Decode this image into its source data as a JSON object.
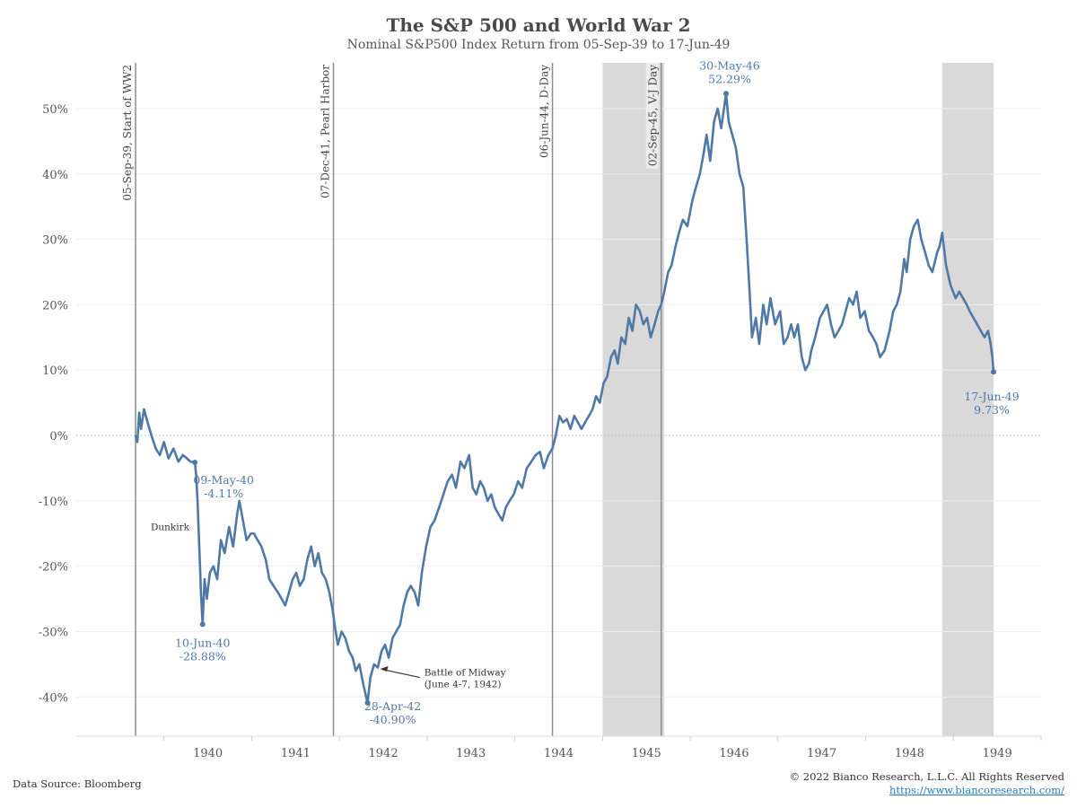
{
  "title": "The S&P 500 and World War 2",
  "subtitle": "Nominal S&P500 Index Return from 05-Sep-39 to 17-Jun-49",
  "footer": {
    "source": "Data Source: Bloomberg",
    "copyright": "© 2022 Bianco Research, L.L.C. All Rights Reserved",
    "url": "https://www.biancoresearch.com/"
  },
  "colors": {
    "line": "#4e79a7",
    "shading": "#d9d9d9",
    "event_line": "#8c8c8c",
    "gridline": "#eeeeee"
  },
  "chart_data": {
    "type": "line",
    "title": "The S&P 500 and World War 2",
    "subtitle": "Nominal S&P500 Index Return from 05-Sep-39 to 17-Jun-49",
    "xlabel": "",
    "ylabel": "",
    "x_ticks": [
      "1940",
      "1941",
      "1942",
      "1943",
      "1944",
      "1945",
      "1946",
      "1947",
      "1948",
      "1949"
    ],
    "y_ticks": [
      "50%",
      "40%",
      "30%",
      "20%",
      "10%",
      "0%",
      "-10%",
      "-20%",
      "-30%",
      "-40%"
    ],
    "y_tick_values": [
      50,
      40,
      30,
      20,
      10,
      0,
      -10,
      -20,
      -30,
      -40
    ],
    "xlim": [
      "1939-01-01",
      "1950-01-01"
    ],
    "ylim": [
      -46,
      57
    ],
    "grid": true,
    "zero_line": "dotted",
    "shaded_periods": [
      {
        "start": "1945-01-01",
        "end": "1945-09-15"
      },
      {
        "start": "1948-11-15",
        "end": "1949-06-17"
      }
    ],
    "events": [
      {
        "date": "1939-09-05",
        "label": "05-Sep-39, Start of WW2"
      },
      {
        "date": "1941-12-07",
        "label": "07-Dec-41, Pearl Harbor"
      },
      {
        "date": "1944-06-06",
        "label": "06-Jun-44, D-Day"
      },
      {
        "date": "1945-09-02",
        "label": "02-Sep-45, V-J Day"
      }
    ],
    "annotations": [
      {
        "date": "1940-05-09",
        "value": -4.11,
        "label_date": "09-May-40",
        "label_value": "-4.11%"
      },
      {
        "date": "1940-06-10",
        "value": -28.88,
        "label_date": "10-Jun-40",
        "label_value": "-28.88%"
      },
      {
        "date": "1942-04-28",
        "value": -40.9,
        "label_date": "28-Apr-42",
        "label_value": "-40.90%"
      },
      {
        "date": "1946-05-30",
        "value": 52.29,
        "label_date": "30-May-46",
        "label_value": "52.29%"
      },
      {
        "date": "1949-06-17",
        "value": 9.73,
        "label_date": "17-Jun-49",
        "label_value": "9.73%"
      }
    ],
    "notes": [
      {
        "text": "Dunkirk"
      },
      {
        "text": "Battle of Midway",
        "text2": "(June 4-7, 1942)"
      }
    ],
    "series": [
      {
        "x": [
          "1939-09-05",
          "1939-09-12",
          "1939-09-20",
          "1939-09-28",
          "1939-10-10",
          "1939-10-25",
          "1939-11-10",
          "1939-11-28",
          "1939-12-15",
          "1940-01-01",
          "1940-01-20",
          "1940-02-10",
          "1940-03-01",
          "1940-03-20",
          "1940-04-05",
          "1940-04-20",
          "1940-05-09",
          "1940-05-14",
          "1940-05-20",
          "1940-05-28",
          "1940-06-03",
          "1940-06-10",
          "1940-06-18",
          "1940-06-28",
          "1940-07-10",
          "1940-07-25",
          "1940-08-10",
          "1940-08-25",
          "1940-09-10",
          "1940-09-28",
          "1940-10-15",
          "1940-11-01",
          "1940-11-10",
          "1940-11-25",
          "1940-12-10",
          "1940-12-28",
          "1941-01-10",
          "1941-01-25",
          "1941-02-10",
          "1941-02-28",
          "1941-03-15",
          "1941-04-01",
          "1941-04-20",
          "1941-05-05",
          "1941-05-20",
          "1941-06-05",
          "1941-06-20",
          "1941-07-05",
          "1941-07-20",
          "1941-08-05",
          "1941-08-20",
          "1941-09-05",
          "1941-09-20",
          "1941-10-05",
          "1941-10-20",
          "1941-11-05",
          "1941-11-20",
          "1941-12-05",
          "1941-12-12",
          "1941-12-25",
          "1942-01-10",
          "1942-01-25",
          "1942-02-10",
          "1942-02-25",
          "1942-03-10",
          "1942-03-25",
          "1942-04-10",
          "1942-04-28",
          "1942-05-10",
          "1942-05-25",
          "1942-06-10",
          "1942-06-25",
          "1942-07-10",
          "1942-07-25",
          "1942-08-10",
          "1942-08-25",
          "1942-09-10",
          "1942-09-25",
          "1942-10-10",
          "1942-10-25",
          "1942-11-10",
          "1942-11-25",
          "1942-12-10",
          "1942-12-28",
          "1943-01-15",
          "1943-02-01",
          "1943-02-20",
          "1943-03-10",
          "1943-03-28",
          "1943-04-15",
          "1943-05-01",
          "1943-05-20",
          "1943-06-05",
          "1943-06-25",
          "1943-07-10",
          "1943-07-25",
          "1943-08-10",
          "1943-08-25",
          "1943-09-10",
          "1943-09-25",
          "1943-10-10",
          "1943-10-25",
          "1943-11-10",
          "1943-11-25",
          "1943-12-10",
          "1943-12-28",
          "1944-01-15",
          "1944-02-01",
          "1944-02-20",
          "1944-03-10",
          "1944-03-28",
          "1944-04-15",
          "1944-05-01",
          "1944-05-20",
          "1944-06-06",
          "1944-06-20",
          "1944-07-05",
          "1944-07-20",
          "1944-08-05",
          "1944-08-20",
          "1944-09-05",
          "1944-09-20",
          "1944-10-05",
          "1944-10-20",
          "1944-11-05",
          "1944-11-20",
          "1944-12-05",
          "1944-12-20",
          "1945-01-05",
          "1945-01-20",
          "1945-02-05",
          "1945-02-20",
          "1945-03-05",
          "1945-03-20",
          "1945-04-05",
          "1945-04-20",
          "1945-05-05",
          "1945-05-20",
          "1945-06-05",
          "1945-06-20",
          "1945-07-05",
          "1945-07-20",
          "1945-08-05",
          "1945-08-20",
          "1945-09-02",
          "1945-09-15",
          "1945-10-01",
          "1945-10-15",
          "1945-11-01",
          "1945-11-15",
          "1945-12-01",
          "1945-12-20",
          "1946-01-10",
          "1946-01-25",
          "1946-02-10",
          "1946-02-25",
          "1946-03-10",
          "1946-03-25",
          "1946-04-10",
          "1946-04-25",
          "1946-05-10",
          "1946-05-30",
          "1946-06-10",
          "1946-06-25",
          "1946-07-10",
          "1946-07-25",
          "1946-08-10",
          "1946-08-25",
          "1946-09-05",
          "1946-09-15",
          "1946-10-01",
          "1946-10-15",
          "1946-11-01",
          "1946-11-15",
          "1946-12-01",
          "1946-12-20",
          "1947-01-10",
          "1947-01-25",
          "1947-02-10",
          "1947-02-25",
          "1947-03-10",
          "1947-03-25",
          "1947-04-10",
          "1947-04-25",
          "1947-05-10",
          "1947-05-20",
          "1947-06-05",
          "1947-06-25",
          "1947-07-10",
          "1947-07-25",
          "1947-08-10",
          "1947-08-25",
          "1947-09-10",
          "1947-09-25",
          "1947-10-10",
          "1947-10-25",
          "1947-11-10",
          "1947-11-25",
          "1947-12-10",
          "1947-12-28",
          "1948-01-15",
          "1948-02-01",
          "1948-02-15",
          "1948-03-01",
          "1948-03-20",
          "1948-04-10",
          "1948-04-25",
          "1948-05-10",
          "1948-05-25",
          "1948-06-10",
          "1948-06-20",
          "1948-07-05",
          "1948-07-20",
          "1948-08-05",
          "1948-08-20",
          "1948-09-05",
          "1948-09-20",
          "1948-10-05",
          "1948-10-25",
          "1948-11-05",
          "1948-11-15",
          "1948-12-01",
          "1948-12-20",
          "1949-01-10",
          "1949-01-25",
          "1949-02-10",
          "1949-02-25",
          "1949-03-10",
          "1949-03-25",
          "1949-04-10",
          "1949-04-25",
          "1949-05-10",
          "1949-05-25",
          "1949-06-05",
          "1949-06-12",
          "1949-06-17"
        ],
        "y": [
          0,
          -1,
          3.5,
          1,
          4,
          2,
          0,
          -2,
          -3,
          -1,
          -3.5,
          -2,
          -4,
          -3,
          -3.5,
          -4,
          -4.11,
          -6,
          -10,
          -18,
          -24,
          -28.88,
          -22,
          -25,
          -21,
          -20,
          -22,
          -16,
          -18,
          -14,
          -17,
          -12,
          -10,
          -13,
          -16,
          -15,
          -15,
          -16,
          -17,
          -19,
          -22,
          -23,
          -24,
          -25,
          -26,
          -24,
          -22,
          -21,
          -23,
          -22,
          -19,
          -17,
          -20,
          -18,
          -21,
          -22,
          -24,
          -27,
          -29,
          -32,
          -30,
          -31,
          -33,
          -34,
          -36,
          -35,
          -38,
          -40.9,
          -37,
          -35,
          -35.5,
          -33,
          -32,
          -34,
          -31,
          -30,
          -29,
          -26,
          -24,
          -23,
          -24,
          -26,
          -21,
          -17,
          -14,
          -13,
          -11,
          -9,
          -7,
          -6,
          -8,
          -4,
          -5,
          -3,
          -8,
          -9,
          -7,
          -8,
          -10,
          -9,
          -11,
          -12,
          -13,
          -11,
          -10,
          -9,
          -7,
          -8,
          -5,
          -4,
          -3,
          -2.5,
          -5,
          -3,
          -2,
          0,
          3,
          2,
          2.5,
          1,
          3,
          2,
          1,
          2,
          3,
          4,
          6,
          5,
          8,
          9,
          12,
          13,
          11,
          15,
          14,
          18,
          16,
          20,
          19,
          17,
          18,
          15,
          17,
          19,
          20,
          22,
          25,
          26,
          29,
          31,
          33,
          32,
          36,
          38,
          40,
          43,
          46,
          42,
          48,
          50,
          47,
          52.29,
          48,
          46,
          44,
          40,
          38,
          29,
          22,
          15,
          18,
          14,
          20,
          17,
          21,
          17,
          19,
          14,
          15,
          17,
          15,
          17,
          12,
          10,
          11,
          13,
          15,
          18,
          19,
          20,
          17,
          15,
          16,
          17,
          19,
          21,
          20,
          22,
          18,
          19,
          16,
          15,
          14,
          12,
          13,
          16,
          19,
          20,
          22,
          27,
          25,
          30,
          32,
          33,
          30,
          28,
          26,
          25,
          28,
          29,
          31,
          26,
          23,
          21,
          22,
          21,
          20,
          19,
          18,
          17,
          16,
          15,
          16,
          14,
          12,
          9.73
        ],
        "note": "daily closes approximated from gridlines; intra-week noise not captured"
      }
    ]
  }
}
